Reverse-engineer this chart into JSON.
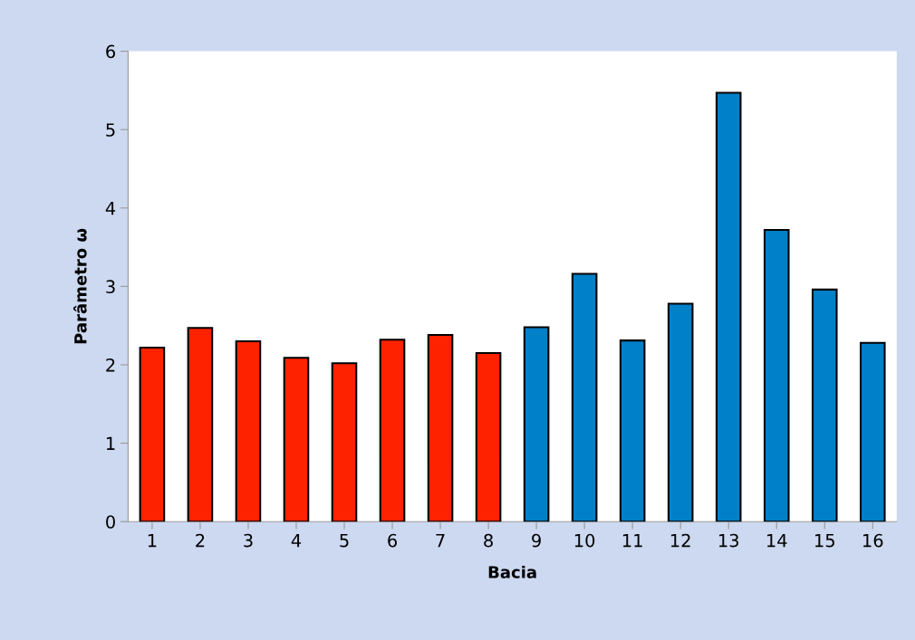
{
  "chart_data": {
    "type": "bar",
    "xlabel": "Bacia",
    "ylabel": "Parâmetro ω",
    "categories": [
      "1",
      "2",
      "3",
      "4",
      "5",
      "6",
      "7",
      "8",
      "9",
      "10",
      "11",
      "12",
      "13",
      "14",
      "15",
      "16"
    ],
    "values": [
      2.22,
      2.47,
      2.3,
      2.09,
      2.02,
      2.32,
      2.38,
      2.15,
      2.48,
      3.16,
      2.31,
      2.78,
      5.47,
      3.72,
      2.96,
      2.28
    ],
    "colors": [
      "#ff2200",
      "#ff2200",
      "#ff2200",
      "#ff2200",
      "#ff2200",
      "#ff2200",
      "#ff2200",
      "#ff2200",
      "#0080c8",
      "#0080c8",
      "#0080c8",
      "#0080c8",
      "#0080c8",
      "#0080c8",
      "#0080c8",
      "#0080c8"
    ],
    "ylim": [
      0,
      6
    ],
    "yticks": [
      0,
      1,
      2,
      3,
      4,
      5,
      6
    ],
    "grid": false,
    "legend": false
  }
}
